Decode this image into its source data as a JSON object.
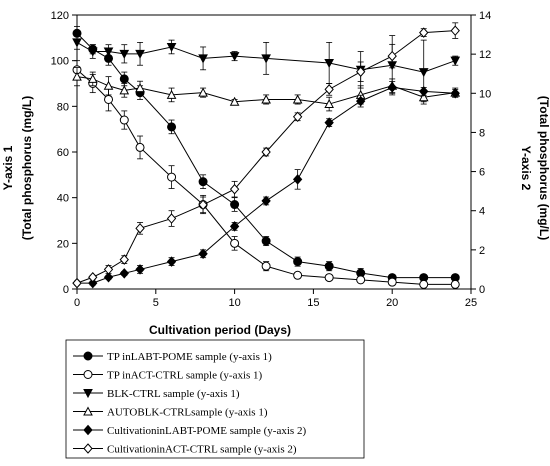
{
  "chart_data": {
    "type": "line",
    "xlabel": "Cultivation period (Days)",
    "ylabel_left": [
      "Y-axis 1",
      "(Total phosphorus (mg/L)"
    ],
    "ylabel_right": [
      "Y-axis 2",
      "(Total phosphorus (mg/L)"
    ],
    "x_range": [
      0,
      25
    ],
    "x_ticks": [
      0,
      5,
      10,
      15,
      20,
      25
    ],
    "y1_range": [
      0,
      120
    ],
    "y1_ticks": [
      0,
      20,
      40,
      60,
      80,
      100,
      120
    ],
    "y2_range": [
      0,
      14
    ],
    "y2_ticks": [
      0,
      2,
      4,
      6,
      8,
      10,
      12,
      14
    ],
    "grid": false,
    "legend_position": "bottom",
    "series": [
      {
        "name": "TP inLABT-POME sample (y-axis 1)",
        "axis": "y1",
        "marker": "circle-filled",
        "x": [
          0,
          1,
          2,
          3,
          4,
          6,
          8,
          10,
          12,
          14,
          16,
          18,
          20,
          22,
          24
        ],
        "y": [
          112,
          105,
          101,
          92,
          86,
          71,
          47,
          37,
          21,
          12,
          10,
          7,
          5,
          5,
          5
        ],
        "err": [
          3,
          2,
          3,
          3,
          3,
          3,
          3,
          3,
          2,
          2,
          2,
          2,
          1,
          1,
          1
        ]
      },
      {
        "name": "TP inACT-CTRL sample (y-axis 1)",
        "axis": "y1",
        "marker": "circle-open",
        "x": [
          0,
          1,
          2,
          3,
          4,
          6,
          8,
          10,
          12,
          14,
          16,
          18,
          20,
          22,
          24
        ],
        "y": [
          96,
          90,
          83,
          74,
          62,
          49,
          37,
          20,
          10,
          6,
          5,
          4,
          3,
          2,
          2
        ],
        "err": [
          4,
          4,
          5,
          4,
          5,
          5,
          4,
          3,
          2,
          1,
          1,
          1,
          1,
          1,
          1
        ]
      },
      {
        "name": "BLK-CTRL sample (y-axis 1)",
        "axis": "y1",
        "marker": "triangle-down-filled",
        "x": [
          0,
          1,
          2,
          3,
          4,
          6,
          8,
          10,
          12,
          16,
          18,
          20,
          22,
          24
        ],
        "y": [
          108,
          104,
          104,
          103,
          103,
          106,
          101,
          102,
          101,
          99,
          96,
          98,
          95,
          100
        ],
        "err": [
          3,
          3,
          3,
          4,
          5,
          3,
          5,
          2,
          7,
          9,
          8,
          13,
          14,
          2
        ]
      },
      {
        "name": "AUTOBLK-CTRLsample (y-axis 1)",
        "axis": "y1",
        "marker": "triangle-up-open",
        "x": [
          0,
          1,
          2,
          3,
          4,
          6,
          8,
          10,
          12,
          14,
          16,
          18,
          20,
          22,
          24
        ],
        "y": [
          93,
          92,
          89,
          87,
          88,
          85,
          86,
          82,
          83,
          83,
          81,
          85,
          89,
          84,
          86
        ],
        "err": [
          4,
          3,
          4,
          3,
          3,
          3,
          2,
          1,
          2,
          2,
          3,
          4,
          3,
          2,
          2
        ]
      },
      {
        "name": "CultivationinLABT-POME sample (y-axis 2)",
        "axis": "y2",
        "marker": "diamond-filled",
        "x": [
          0,
          1,
          2,
          3,
          4,
          6,
          8,
          10,
          12,
          14,
          16,
          18,
          20,
          22,
          24
        ],
        "y": [
          0.3,
          0.3,
          0.6,
          0.8,
          1.0,
          1.4,
          1.8,
          3.2,
          4.5,
          5.6,
          8.5,
          9.6,
          10.3,
          10.1,
          10.0
        ],
        "err": [
          0.1,
          0.1,
          0.1,
          0.1,
          0.2,
          0.2,
          0.2,
          0.2,
          0.2,
          0.5,
          0.2,
          0.3,
          0.3,
          0.2,
          0.2
        ]
      },
      {
        "name": "CultivationinACT-CTRL sample (y-axis 2)",
        "axis": "y2",
        "marker": "diamond-open",
        "x": [
          0,
          1,
          2,
          3,
          4,
          6,
          8,
          10,
          12,
          14,
          16,
          18,
          20,
          22,
          24
        ],
        "y": [
          0.3,
          0.6,
          1.0,
          1.5,
          3.1,
          3.6,
          4.3,
          5.1,
          7.0,
          8.8,
          10.2,
          11.1,
          11.9,
          13.1,
          13.2
        ],
        "err": [
          0.1,
          0.1,
          0.2,
          0.2,
          0.3,
          0.4,
          0.4,
          0.4,
          0.2,
          0.2,
          0.3,
          0.5,
          0.6,
          0.2,
          0.4
        ]
      }
    ]
  }
}
